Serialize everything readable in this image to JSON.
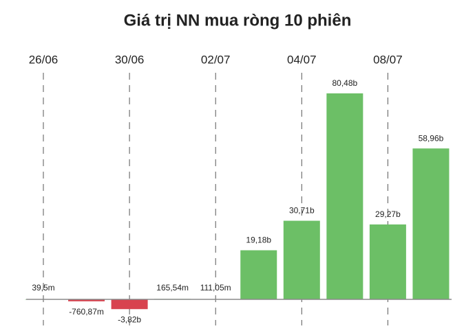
{
  "chart_data": {
    "type": "bar",
    "title": "Giá trị NN mua ròng 10 phiên",
    "categories": [
      "26/06",
      null,
      "30/06",
      null,
      "02/07",
      null,
      "04/07",
      null,
      "08/07",
      null
    ],
    "series": [
      {
        "name": null,
        "values": [
          0.0395,
          -0.76087,
          -3.82,
          0.16554,
          0.11105,
          19.18,
          30.71,
          80.48,
          29.27,
          58.96
        ],
        "value_labels": [
          "39,5m",
          "-760,87m",
          "-3,82b",
          "165,54m",
          "111,05m",
          "19,18b",
          "30,71b",
          "80,48b",
          "29,27b",
          "58,96b"
        ]
      }
    ],
    "positive_color": "#6cbf66",
    "negative_color": "#d8434f"
  }
}
